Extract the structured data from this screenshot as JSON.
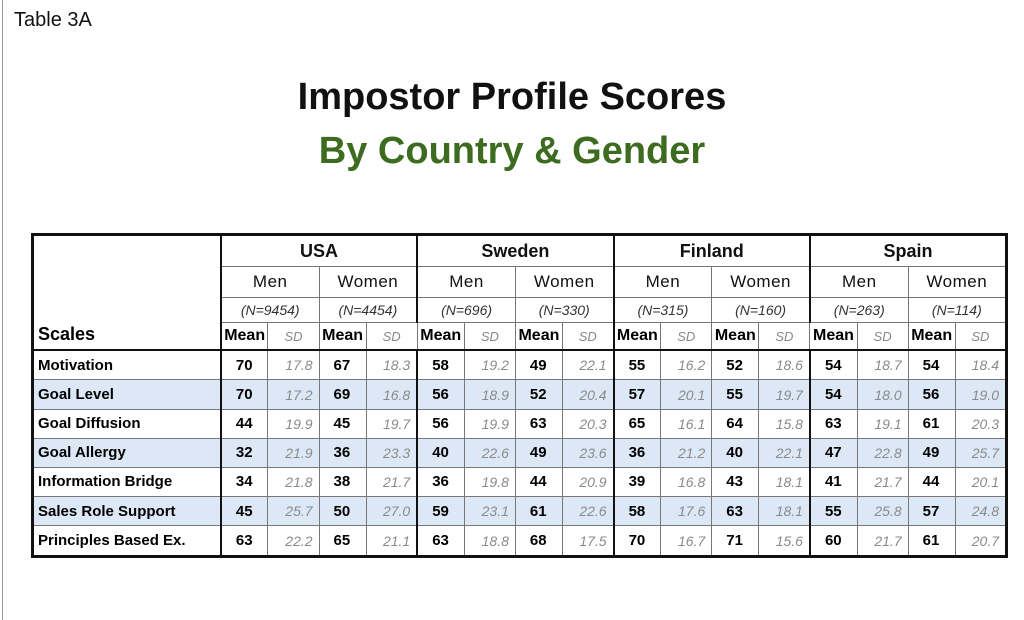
{
  "label": "Table 3A",
  "title": "Impostor Profile Scores",
  "subtitle": "By Country & Gender",
  "scales_header": "Scales",
  "mean_label": "Mean",
  "sd_label": "SD",
  "countries": [
    {
      "name": "USA",
      "men_label": "Men",
      "women_label": "Women",
      "men_n": "(N=9454)",
      "women_n": "(N=4454)"
    },
    {
      "name": "Sweden",
      "men_label": "Men",
      "women_label": "Women",
      "men_n": "(N=696)",
      "women_n": "(N=330)"
    },
    {
      "name": "Finland",
      "men_label": "Men",
      "women_label": "Women",
      "men_n": "(N=315)",
      "women_n": "(N=160)"
    },
    {
      "name": "Spain",
      "men_label": "Men",
      "women_label": "Women",
      "men_n": "(N=263)",
      "women_n": "(N=114)"
    }
  ],
  "rows": [
    {
      "label": "Motivation",
      "shaded": false,
      "values": [
        "70",
        "17.8",
        "67",
        "18.3",
        "58",
        "19.2",
        "49",
        "22.1",
        "55",
        "16.2",
        "52",
        "18.6",
        "54",
        "18.7",
        "54",
        "18.4"
      ]
    },
    {
      "label": "Goal Level",
      "shaded": true,
      "values": [
        "70",
        "17.2",
        "69",
        "16.8",
        "56",
        "18.9",
        "52",
        "20.4",
        "57",
        "20.1",
        "55",
        "19.7",
        "54",
        "18.0",
        "56",
        "19.0"
      ]
    },
    {
      "label": "Goal Diffusion",
      "shaded": false,
      "values": [
        "44",
        "19.9",
        "45",
        "19.7",
        "56",
        "19.9",
        "63",
        "20.3",
        "65",
        "16.1",
        "64",
        "15.8",
        "63",
        "19.1",
        "61",
        "20.3"
      ]
    },
    {
      "label": "Goal Allergy",
      "shaded": true,
      "values": [
        "32",
        "21.9",
        "36",
        "23.3",
        "40",
        "22.6",
        "49",
        "23.6",
        "36",
        "21.2",
        "40",
        "22.1",
        "47",
        "22.8",
        "49",
        "25.7"
      ]
    },
    {
      "label": "Information Bridge",
      "shaded": false,
      "values": [
        "34",
        "21.8",
        "38",
        "21.7",
        "36",
        "19.8",
        "44",
        "20.9",
        "39",
        "16.8",
        "43",
        "18.1",
        "41",
        "21.7",
        "44",
        "20.1"
      ]
    },
    {
      "label": "Sales Role Support",
      "shaded": true,
      "values": [
        "45",
        "25.7",
        "50",
        "27.0",
        "59",
        "23.1",
        "61",
        "22.6",
        "58",
        "17.6",
        "63",
        "18.1",
        "55",
        "25.8",
        "57",
        "24.8"
      ]
    },
    {
      "label": "Principles Based Ex.",
      "shaded": false,
      "values": [
        "63",
        "22.2",
        "65",
        "21.1",
        "63",
        "18.8",
        "68",
        "17.5",
        "70",
        "16.7",
        "71",
        "15.6",
        "60",
        "21.7",
        "61",
        "20.7"
      ]
    }
  ]
}
